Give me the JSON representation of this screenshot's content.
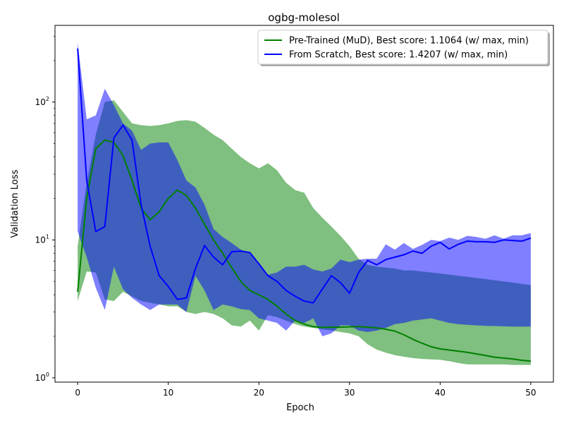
{
  "chart_data": {
    "type": "area",
    "title": "ogbg-molesol",
    "xlabel": "Epoch",
    "ylabel": "Validation Loss",
    "yscale": "log",
    "xlim": [
      -2.5,
      52.5
    ],
    "ylim": [
      0.93,
      360
    ],
    "xticks": [
      0,
      10,
      20,
      30,
      40,
      50
    ],
    "xtick_labels": [
      "0",
      "10",
      "20",
      "30",
      "40",
      "50"
    ],
    "yticks": [
      1,
      10,
      100
    ],
    "ytick_labels": [
      "10^0",
      "10^1",
      "10^2"
    ],
    "grid": false,
    "legend_position": "top-right",
    "series": [
      {
        "name": "Pre-Trained (MuD), Best score: 1.1064 (w/ max, min)",
        "color": "#008000",
        "fill": "#7fbf7f",
        "x": [
          0,
          1,
          2,
          3,
          4,
          5,
          6,
          7,
          8,
          9,
          10,
          11,
          12,
          13,
          14,
          15,
          16,
          17,
          18,
          19,
          20,
          21,
          22,
          23,
          24,
          25,
          26,
          27,
          28,
          29,
          30,
          31,
          32,
          33,
          34,
          35,
          36,
          37,
          38,
          39,
          40,
          41,
          42,
          43,
          44,
          45,
          46,
          47,
          48,
          49,
          50
        ],
        "mean": [
          4.2,
          20,
          46,
          53,
          51,
          41,
          27,
          17,
          14,
          16,
          20,
          23,
          21,
          17,
          13,
          10,
          8,
          6.3,
          5,
          4.3,
          4,
          3.7,
          3.3,
          2.9,
          2.6,
          2.45,
          2.35,
          2.32,
          2.33,
          2.33,
          2.34,
          2.35,
          2.33,
          2.3,
          2.25,
          2.18,
          2.05,
          1.9,
          1.78,
          1.68,
          1.62,
          1.59,
          1.56,
          1.53,
          1.49,
          1.45,
          1.41,
          1.39,
          1.37,
          1.34,
          1.32
        ],
        "max": [
          9,
          26,
          58,
          100,
          103,
          85,
          70,
          68,
          67,
          68,
          70,
          73,
          74,
          72,
          65,
          58,
          53,
          46,
          40,
          36,
          33,
          36,
          32,
          26,
          23,
          22,
          17,
          14.5,
          12.5,
          10.7,
          9,
          7.3,
          6.6,
          6.4,
          6.3,
          6.2,
          6,
          6,
          5.9,
          5.8,
          5.7,
          5.6,
          5.5,
          5.4,
          5.3,
          5.2,
          5.1,
          5,
          4.9,
          4.8,
          4.7
        ],
        "min": [
          3.6,
          5.9,
          5.8,
          3.7,
          3.6,
          4.2,
          3.9,
          3.6,
          3.5,
          3.4,
          3.3,
          3.3,
          3.0,
          2.9,
          3.0,
          2.9,
          2.7,
          2.4,
          2.35,
          2.6,
          2.2,
          2.85,
          2.75,
          2.6,
          2.45,
          2.35,
          2.3,
          2.25,
          2.2,
          2.15,
          2.1,
          2.0,
          1.75,
          1.6,
          1.52,
          1.46,
          1.42,
          1.39,
          1.37,
          1.36,
          1.35,
          1.32,
          1.28,
          1.25,
          1.25,
          1.25,
          1.25,
          1.25,
          1.24,
          1.24,
          1.24
        ]
      },
      {
        "name": "From Scratch, Best score: 1.4207 (w/ max, min)",
        "color": "#0000ff",
        "fill": "#7f7fff",
        "x": [
          0,
          1,
          2,
          3,
          4,
          5,
          6,
          7,
          8,
          9,
          10,
          11,
          12,
          13,
          14,
          15,
          16,
          17,
          18,
          19,
          20,
          21,
          22,
          23,
          24,
          25,
          26,
          27,
          28,
          29,
          30,
          31,
          32,
          33,
          34,
          35,
          36,
          37,
          38,
          39,
          40,
          41,
          42,
          43,
          44,
          45,
          46,
          47,
          48,
          49,
          50
        ],
        "mean": [
          245,
          27,
          11.5,
          12.5,
          55,
          68,
          53,
          18,
          9,
          5.5,
          4.6,
          3.7,
          3.8,
          6.2,
          9.1,
          7.5,
          6.6,
          8.2,
          8.3,
          8.1,
          6.7,
          5.5,
          5,
          4.3,
          3.9,
          3.6,
          3.5,
          4.4,
          5.5,
          4.9,
          4.1,
          5.8,
          7.1,
          6.6,
          7.2,
          7.5,
          7.8,
          8.3,
          8,
          9,
          9.6,
          8.6,
          9.3,
          9.8,
          9.7,
          9.7,
          9.6,
          10,
          9.9,
          9.8,
          10.3
        ],
        "max": [
          270,
          75,
          80,
          125,
          95,
          70,
          62,
          45,
          50,
          51,
          51,
          38,
          27,
          24,
          18,
          12,
          10.5,
          9.5,
          8.5,
          8,
          6.8,
          5.6,
          5.8,
          6.4,
          6.4,
          6.6,
          6.1,
          5.9,
          6.2,
          7.2,
          6.9,
          7.2,
          7.3,
          7.3,
          9.3,
          8.5,
          9.5,
          8.6,
          9.2,
          10,
          9.8,
          10.4,
          10,
          10.7,
          10.5,
          10.2,
          10.8,
          10.2,
          10.8,
          10.8,
          11.2
        ],
        "min": [
          11.5,
          7.5,
          4.5,
          3.1,
          6.4,
          4.4,
          3.8,
          3.4,
          3.1,
          3.4,
          3.4,
          3.4,
          3.0,
          5.5,
          4.3,
          3.1,
          3.4,
          3.3,
          3.15,
          3.1,
          2.7,
          2.6,
          2.5,
          2.2,
          2.6,
          2.5,
          2.7,
          2.0,
          2.1,
          2.4,
          2.4,
          2.2,
          2.15,
          2.2,
          2.3,
          2.45,
          2.5,
          2.6,
          2.65,
          2.7,
          2.6,
          2.5,
          2.45,
          2.42,
          2.4,
          2.38,
          2.37,
          2.36,
          2.35,
          2.35,
          2.35
        ]
      }
    ]
  }
}
